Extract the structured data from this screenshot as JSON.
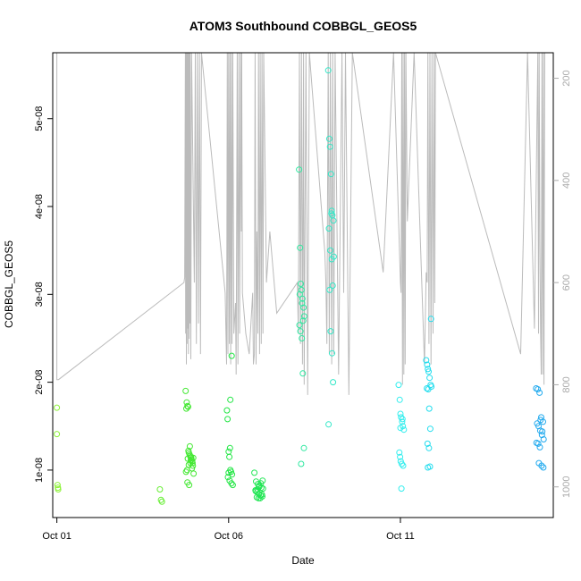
{
  "chart_data": {
    "type": "scatter",
    "title": "ATOM3 Southbound COBBGL_GEOS5",
    "xlabel": "Date",
    "ylabel": "COBBGL_GEOS5",
    "y2label": "",
    "xlim": [
      -0.12,
      14.45
    ],
    "ylim": [
      4.6e-09,
      5.75e-08
    ],
    "y2lim": [
      1060,
      150
    ],
    "x_ticks": [
      {
        "value": 0,
        "label": "Oct 01"
      },
      {
        "value": 5,
        "label": "Oct 06"
      },
      {
        "value": 10,
        "label": "Oct 11"
      }
    ],
    "y_ticks": [
      {
        "value": 1e-08,
        "label": "1e-08"
      },
      {
        "value": 2e-08,
        "label": "2e-08"
      },
      {
        "value": 3e-08,
        "label": "3e-08"
      },
      {
        "value": 4e-08,
        "label": "4e-08"
      },
      {
        "value": 5e-08,
        "label": "5e-08"
      }
    ],
    "y2_ticks": [
      200,
      400,
      600,
      800,
      1000
    ],
    "grid": false,
    "legend": "none",
    "colors": {
      "pressure_line": "#bbbbbb",
      "axis": "#000000",
      "axis_right": "#aaaaaa"
    },
    "scatter_groups": [
      {
        "color": "#8ef23a",
        "x": [
          0.0,
          0.0,
          0.02,
          0.03,
          0.04
        ],
        "y": [
          1.71e-08,
          1.41e-08,
          8.3e-09,
          8e-09,
          7.8e-09
        ]
      },
      {
        "color": "#66ee33",
        "x": [
          3.0,
          3.03,
          3.06
        ],
        "y": [
          7.8e-09,
          6.6e-09,
          6.4e-09
        ]
      },
      {
        "color": "#44e833",
        "x": [
          3.75,
          3.78,
          3.8,
          3.82,
          3.84,
          3.86,
          3.88,
          3.9,
          3.92,
          3.94,
          3.96,
          3.76,
          3.79,
          3.83,
          3.87,
          3.91,
          3.95,
          3.98,
          3.8,
          3.85,
          3.89,
          3.93,
          3.97,
          3.77,
          3.81,
          3.84,
          3.9
        ],
        "y": [
          1.9e-08,
          1.77e-08,
          1.73e-08,
          1.72e-08,
          1.2e-08,
          1.18e-08,
          1.16e-08,
          1.14e-08,
          1.12e-08,
          1.1e-08,
          1.05e-08,
          9.8e-09,
          1e-08,
          1.22e-08,
          1.27e-08,
          1.15e-08,
          1.08e-08,
          9.6e-09,
          8.6e-09,
          8.3e-09,
          1.08e-08,
          1.02e-08,
          1.14e-08,
          1.7e-08,
          1.13e-08,
          1.06e-08,
          1.11e-08
        ]
      },
      {
        "color": "#22e644",
        "x": [
          4.95,
          4.97,
          5.0,
          5.02,
          5.05,
          5.07,
          5.1,
          4.98,
          5.03,
          5.08,
          5.12,
          5.0,
          5.05,
          5.09,
          5.04
        ],
        "y": [
          1.68e-08,
          1.58e-08,
          1.21e-08,
          1.15e-08,
          1e-08,
          9.8e-09,
          9.5e-09,
          9.2e-09,
          8.8e-09,
          8.5e-09,
          8.3e-09,
          9.7e-09,
          1.8e-08,
          2.3e-08,
          1.25e-08
        ]
      },
      {
        "color": "#22e655",
        "x": [
          5.75,
          5.8,
          5.85,
          5.9,
          5.95,
          6.0,
          5.78,
          5.83,
          5.88,
          5.93,
          5.98,
          5.82,
          5.87,
          5.92,
          5.97,
          5.79,
          5.84,
          5.89,
          5.94,
          5.99
        ],
        "y": [
          9.7e-09,
          8.7e-09,
          8.4e-09,
          8.2e-09,
          8e-09,
          7.9e-09,
          7.7e-09,
          7.5e-09,
          7.3e-09,
          7.1e-09,
          7e-09,
          6.9e-09,
          6.8e-09,
          6.8e-09,
          7.2e-09,
          7.6e-09,
          7.8e-09,
          8.1e-09,
          8.5e-09,
          8.8e-09
        ]
      },
      {
        "color": "#2ee8a0",
        "x": [
          7.05,
          7.08,
          7.1,
          7.12,
          7.15,
          7.18,
          7.2,
          7.06,
          7.09,
          7.13,
          7.16,
          7.19,
          7.11,
          7.14,
          7.07,
          7.17
        ],
        "y": [
          4.42e-08,
          3.53e-08,
          3.12e-08,
          3.05e-08,
          2.95e-08,
          2.85e-08,
          2.75e-08,
          2.65e-08,
          2.58e-08,
          2.5e-08,
          2.1e-08,
          1.25e-08,
          1.07e-08,
          2.9e-08,
          3e-08,
          2.7e-08
        ]
      },
      {
        "color": "#33e8c8",
        "x": [
          7.9,
          7.93,
          7.95,
          7.98,
          8.0,
          8.02,
          8.05,
          7.92,
          7.96,
          8.0,
          8.03,
          7.94,
          7.97,
          8.01,
          8.04,
          7.91,
          7.99,
          8.06
        ],
        "y": [
          5.55e-08,
          4.77e-08,
          4.68e-08,
          4.37e-08,
          3.95e-08,
          3.9e-08,
          3.84e-08,
          3.75e-08,
          3.5e-08,
          3.4e-08,
          3.1e-08,
          3.05e-08,
          2.58e-08,
          2.33e-08,
          2e-08,
          1.52e-08,
          3.92e-08,
          3.43e-08
        ]
      },
      {
        "color": "#33eeee",
        "x": [
          9.95,
          9.98,
          10.0,
          10.02,
          10.05,
          10.07,
          10.1,
          9.97,
          10.01,
          10.04,
          10.08,
          9.99,
          10.03,
          10.06,
          10.0
        ],
        "y": [
          1.97e-08,
          1.8e-08,
          1.64e-08,
          1.6e-08,
          1.55e-08,
          1.5e-08,
          1.46e-08,
          1.2e-08,
          1.1e-08,
          1.07e-08,
          1.05e-08,
          1.15e-08,
          7.9e-09,
          1.58e-08,
          1.48e-08
        ]
      },
      {
        "color": "#22ddee",
        "x": [
          10.75,
          10.78,
          10.8,
          10.82,
          10.85,
          10.88,
          10.9,
          10.77,
          10.81,
          10.84,
          10.87,
          10.79,
          10.83,
          10.86,
          10.8,
          10.89
        ],
        "y": [
          2.25e-08,
          2.2e-08,
          2.15e-08,
          2.12e-08,
          2.05e-08,
          1.97e-08,
          1.95e-08,
          1.93e-08,
          1.92e-08,
          1.7e-08,
          1.47e-08,
          1.3e-08,
          1.25e-08,
          1.04e-08,
          1.03e-08,
          2.72e-08
        ]
      },
      {
        "color": "#22aaee",
        "x": [
          13.95,
          14.0,
          14.05,
          14.1,
          14.15,
          13.98,
          14.02,
          14.07,
          14.12,
          14.17,
          13.96,
          14.01,
          14.06,
          14.11,
          14.16,
          14.03,
          14.08,
          14.13
        ],
        "y": [
          1.93e-08,
          1.92e-08,
          1.88e-08,
          1.6e-08,
          1.55e-08,
          1.53e-08,
          1.5e-08,
          1.45e-08,
          1.4e-08,
          1.35e-08,
          1.31e-08,
          1.3e-08,
          1.26e-08,
          1.05e-08,
          1.03e-08,
          1.08e-08,
          1.57e-08,
          1.44e-08
        ]
      }
    ],
    "pressure_line": {
      "x": [
        0.0,
        0.0,
        0.05,
        3.7,
        3.72,
        3.74,
        3.75,
        3.76,
        3.77,
        3.78,
        3.79,
        3.8,
        3.81,
        3.82,
        3.83,
        3.84,
        3.85,
        3.86,
        3.87,
        3.88,
        3.9,
        3.92,
        4.0,
        4.03,
        4.06,
        4.09,
        4.12,
        4.15,
        4.18,
        4.21,
        4.9,
        4.94,
        4.96,
        4.98,
        5.0,
        5.02,
        5.04,
        5.06,
        5.08,
        5.1,
        5.12,
        5.15,
        5.2,
        5.22,
        5.25,
        5.27,
        5.3,
        5.32,
        5.35,
        5.37,
        5.38,
        5.4,
        5.5,
        5.6,
        5.7,
        5.72,
        5.75,
        5.77,
        5.8,
        5.82,
        5.85,
        5.87,
        5.9,
        5.92,
        5.95,
        5.97,
        6.0,
        6.02,
        6.1,
        6.2,
        6.4,
        7.0,
        7.03,
        7.06,
        7.09,
        7.12,
        7.15,
        7.18,
        7.2,
        7.25,
        7.3,
        7.35,
        7.8,
        7.83,
        7.86,
        7.9,
        7.93,
        7.96,
        8.0,
        8.03,
        8.06,
        8.1,
        8.2,
        8.3,
        8.35,
        8.4,
        8.5,
        8.6,
        9.5,
        9.8,
        10.0,
        10.02,
        10.04,
        10.06,
        10.08,
        10.1,
        10.12,
        10.14,
        10.16,
        10.2,
        10.4,
        10.7,
        10.75,
        10.78,
        10.8,
        10.83,
        10.86,
        10.89,
        10.92,
        10.95,
        10.98,
        11.0,
        11.02,
        13.5,
        13.7,
        13.9,
        14.0,
        14.02,
        14.04,
        14.06,
        14.08,
        14.1,
        14.12,
        14.14,
        14.16,
        14.18,
        14.2
      ],
      "p": [
        150,
        790,
        790,
        600,
        590,
        150,
        700,
        150,
        760,
        150,
        720,
        150,
        690,
        150,
        740,
        150,
        710,
        150,
        680,
        150,
        750,
        150,
        600,
        150,
        720,
        150,
        680,
        150,
        740,
        150,
        620,
        760,
        150,
        740,
        150,
        720,
        150,
        760,
        150,
        720,
        150,
        700,
        640,
        780,
        150,
        760,
        150,
        700,
        150,
        500,
        150,
        620,
        700,
        740,
        620,
        760,
        740,
        150,
        760,
        500,
        700,
        150,
        740,
        150,
        720,
        150,
        700,
        150,
        600,
        500,
        660,
        600,
        700,
        150,
        720,
        150,
        760,
        150,
        800,
        150,
        820,
        150,
        540,
        600,
        720,
        150,
        740,
        150,
        760,
        150,
        740,
        150,
        780,
        150,
        620,
        150,
        820,
        150,
        580,
        150,
        600,
        620,
        150,
        800,
        150,
        780,
        150,
        760,
        150,
        480,
        150,
        760,
        580,
        600,
        150,
        720,
        150,
        760,
        150,
        700,
        150,
        640,
        150,
        740,
        150,
        690,
        150,
        700,
        150,
        520,
        700,
        780,
        150,
        780,
        150,
        800,
        150,
        760,
        150,
        780,
        150,
        780
      ]
    }
  }
}
